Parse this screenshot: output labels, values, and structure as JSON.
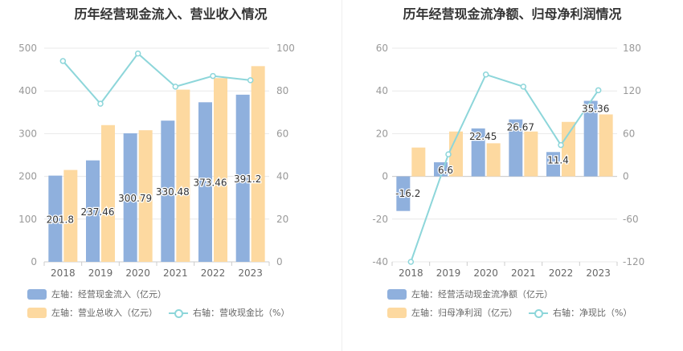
{
  "colors": {
    "bar1": "#8fb0dd",
    "bar2": "#fdd9a0",
    "line": "#8dd6da",
    "grid": "#e8e8e8",
    "axis": "#999999"
  },
  "chart_data": [
    {
      "type": "bar",
      "title": "历年经营现金流入、营业收入情况",
      "categories": [
        "2018",
        "2019",
        "2020",
        "2021",
        "2022",
        "2023"
      ],
      "ylim_left": [
        0,
        500
      ],
      "yticks_left": [
        "0",
        "100",
        "200",
        "300",
        "400",
        "500"
      ],
      "ylim_right": [
        0,
        100
      ],
      "yticks_right": [
        "0",
        "20",
        "40",
        "60",
        "80",
        "100"
      ],
      "series": [
        {
          "name": "左轴：经营现金流入（亿元）",
          "kind": "bar",
          "axis": "left",
          "color": "#8fb0dd",
          "values": [
            201.8,
            237.46,
            300.79,
            330.48,
            373.46,
            391.2
          ],
          "labels": [
            "201.8",
            "237.46",
            "300.79",
            "330.48",
            "373.46",
            "391.2"
          ]
        },
        {
          "name": "左轴：营业总收入（亿元）",
          "kind": "bar",
          "axis": "left",
          "color": "#fdd9a0",
          "values": [
            215,
            320,
            308,
            403,
            430,
            458
          ]
        },
        {
          "name": "右轴：营收现金比（%）",
          "kind": "line",
          "axis": "right",
          "color": "#8dd6da",
          "values": [
            94,
            74,
            97.5,
            82,
            87,
            85
          ]
        }
      ],
      "legend": [
        {
          "label": "左轴：经营现金流入（亿元）",
          "swatch": "bar",
          "color": "#8fb0dd"
        },
        {
          "label": "左轴：营业总收入（亿元）",
          "swatch": "bar",
          "color": "#fdd9a0"
        },
        {
          "label": "右轴：营收现金比（%）",
          "swatch": "line",
          "color": "#8dd6da"
        }
      ]
    },
    {
      "type": "bar",
      "title": "历年经营现金流净额、归母净利润情况",
      "categories": [
        "2018",
        "2019",
        "2020",
        "2021",
        "2022",
        "2023"
      ],
      "ylim_left": [
        -40,
        60
      ],
      "yticks_left": [
        "-40",
        "-20",
        "0",
        "20",
        "40",
        "60"
      ],
      "ylim_right": [
        -120,
        180
      ],
      "yticks_right": [
        "-120",
        "-60",
        "0",
        "60",
        "120",
        "180"
      ],
      "series": [
        {
          "name": "左轴：经营活动现金流净额（亿元）",
          "kind": "bar",
          "axis": "left",
          "color": "#8fb0dd",
          "values": [
            -16.2,
            6.6,
            22.45,
            26.67,
            11.4,
            35.36
          ],
          "labels": [
            "-16.2",
            "6.6",
            "22.45",
            "26.67",
            "11.4",
            "35.36"
          ]
        },
        {
          "name": "左轴：归母净利润（亿元）",
          "kind": "bar",
          "axis": "left",
          "color": "#fdd9a0",
          "values": [
            13.5,
            21,
            15.5,
            21,
            25.5,
            29
          ]
        },
        {
          "name": "右轴：净现比（%）",
          "kind": "line",
          "axis": "right",
          "color": "#8dd6da",
          "values": [
            -120,
            31,
            143,
            126,
            44,
            121
          ]
        }
      ],
      "legend": [
        {
          "label": "左轴：经营活动现金流净额（亿元）",
          "swatch": "bar",
          "color": "#8fb0dd"
        },
        {
          "label": "左轴：归母净利润（亿元）",
          "swatch": "bar",
          "color": "#fdd9a0"
        },
        {
          "label": "右轴：净现比（%）",
          "swatch": "line",
          "color": "#8dd6da"
        }
      ]
    }
  ]
}
